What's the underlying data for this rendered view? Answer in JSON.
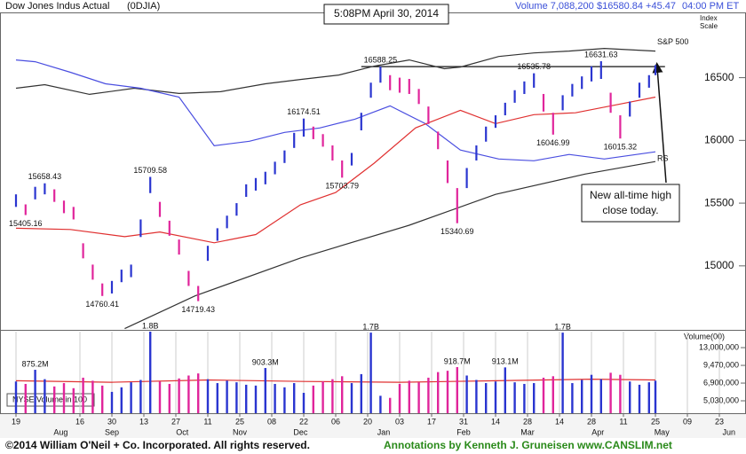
{
  "header": {
    "title": "Dow Jones Indus Actual",
    "symbol": "(0DJIA)",
    "timestamp": "5:08PM April 30, 2014",
    "volume_text": "Volume 7,088,200",
    "price_text": "$16580.84 +45.47",
    "time_text": "04:00 PM ET",
    "scale_label": [
      "Index",
      "Scale"
    ]
  },
  "chart_data": {
    "type": "ohlc",
    "x": [
      0,
      3,
      6,
      9,
      12,
      15,
      18,
      21,
      24,
      27,
      30,
      33,
      36,
      39,
      42,
      45,
      48,
      51,
      54,
      57,
      60,
      63,
      66,
      69,
      72,
      75,
      78,
      81,
      84,
      87,
      90,
      93,
      96,
      99,
      102,
      105,
      108,
      111,
      114,
      117,
      120,
      123,
      126,
      129,
      132,
      135,
      138,
      141,
      144,
      147,
      150,
      153,
      156,
      159,
      162,
      165,
      168,
      171,
      174,
      177,
      180,
      183,
      186,
      189,
      192,
      195,
      198,
      200
    ],
    "high": [
      15570,
      15490,
      15630,
      15658,
      15610,
      15520,
      15470,
      15180,
      15010,
      14860,
      14880,
      14970,
      15010,
      15370,
      15709,
      15510,
      15360,
      15210,
      14960,
      14840,
      15160,
      15300,
      15400,
      15500,
      15650,
      15700,
      15750,
      15830,
      15920,
      16060,
      16174,
      16110,
      16050,
      15960,
      15840,
      15900,
      16220,
      16460,
      16588,
      16520,
      16500,
      16490,
      16410,
      16270,
      16070,
      15840,
      15620,
      15780,
      15960,
      16110,
      16200,
      16300,
      16400,
      16470,
      16535,
      16370,
      16220,
      16360,
      16450,
      16510,
      16590,
      16631,
      16380,
      16200,
      16310,
      16460,
      16520,
      16600
    ],
    "low": [
      15470,
      15405,
      15530,
      15570,
      15510,
      15420,
      15370,
      15060,
      14890,
      14760,
      14780,
      14870,
      14910,
      15230,
      15580,
      15390,
      15240,
      15090,
      14840,
      14719,
      15040,
      15200,
      15300,
      15400,
      15550,
      15600,
      15650,
      15730,
      15820,
      15940,
      16030,
      16010,
      15950,
      15840,
      15703,
      15800,
      16080,
      16340,
      16460,
      16400,
      16380,
      16370,
      16290,
      16130,
      15930,
      15660,
      15340,
      15620,
      15840,
      15990,
      16100,
      16200,
      16300,
      16370,
      16420,
      16230,
      16046,
      16240,
      16350,
      16410,
      16470,
      16490,
      16220,
      16015,
      16190,
      16340,
      16420,
      16520
    ],
    "up_color": "#2a35d0",
    "down_color": "#e0259b",
    "xlim": [
      -5,
      225
    ],
    "ylim": [
      14490,
      17020
    ],
    "yticks": [
      15000,
      15500,
      16000,
      16500
    ],
    "grid": true,
    "xticks": [
      {
        "value": 0,
        "label": "19"
      },
      {
        "value": 20,
        "label": "16"
      },
      {
        "value": 30,
        "label": "30"
      },
      {
        "value": 40,
        "label": "13"
      },
      {
        "value": 50,
        "label": "27"
      },
      {
        "value": 60,
        "label": "11"
      },
      {
        "value": 70,
        "label": "25"
      },
      {
        "value": 80,
        "label": "08"
      },
      {
        "value": 90,
        "label": "22"
      },
      {
        "value": 100,
        "label": "06"
      },
      {
        "value": 110,
        "label": "20"
      },
      {
        "value": 120,
        "label": "03"
      },
      {
        "value": 130,
        "label": "17"
      },
      {
        "value": 140,
        "label": "31"
      },
      {
        "value": 150,
        "label": "14"
      },
      {
        "value": 160,
        "label": "28"
      },
      {
        "value": 170,
        "label": "14"
      },
      {
        "value": 180,
        "label": "28"
      },
      {
        "value": 190,
        "label": "11"
      },
      {
        "value": 200,
        "label": "25"
      },
      {
        "value": 210,
        "label": "09"
      },
      {
        "value": 220,
        "label": "23"
      }
    ],
    "months": [
      {
        "value": 14,
        "label": "Aug"
      },
      {
        "value": 30,
        "label": "Sep"
      },
      {
        "value": 52,
        "label": "Oct"
      },
      {
        "value": 70,
        "label": "Nov"
      },
      {
        "value": 89,
        "label": "Dec"
      },
      {
        "value": 115,
        "label": "Jan"
      },
      {
        "value": 140,
        "label": "Feb"
      },
      {
        "value": 160,
        "label": "Mar"
      },
      {
        "value": 182,
        "label": "Apr"
      },
      {
        "value": 202,
        "label": "May"
      },
      {
        "value": 223,
        "label": "Jun"
      }
    ],
    "series": [
      {
        "name": "S&P 500",
        "color": "#333333",
        "x": [
          0,
          9,
          23,
          37,
          51,
          64,
          78,
          89,
          101,
          112,
          123,
          134,
          139,
          151,
          162,
          173,
          184,
          200
        ],
        "values": [
          16416,
          16444,
          16367,
          16416,
          16374,
          16388,
          16451,
          16486,
          16521,
          16592,
          16641,
          16571,
          16585,
          16669,
          16697,
          16712,
          16733,
          16712
        ]
      },
      {
        "name": "RS",
        "color": "#4a4ee0",
        "x": [
          0,
          6,
          17,
          28,
          39,
          51,
          62,
          73,
          84,
          95,
          106,
          117,
          128,
          139,
          151,
          162,
          173,
          184,
          200
        ],
        "values": [
          16641,
          16627,
          16543,
          16451,
          16416,
          16345,
          15958,
          15993,
          16064,
          16099,
          16169,
          16275,
          16134,
          15923,
          15852,
          15838,
          15888,
          15852,
          15909
        ]
      },
      {
        "color": "#e03030",
        "x": [
          0,
          17,
          34,
          45,
          62,
          75,
          89,
          100,
          112,
          125,
          139,
          150,
          162,
          175,
          189,
          200
        ],
        "values": [
          15300,
          15290,
          15233,
          15270,
          15184,
          15250,
          15487,
          15585,
          15818,
          16100,
          16240,
          16134,
          16205,
          16220,
          16290,
          16345
        ]
      },
      {
        "color": "#333333",
        "x": [
          34,
          56,
          89,
          123,
          150,
          178,
          200
        ],
        "values": [
          14500,
          14761,
          15063,
          15324,
          15570,
          15732,
          15831
        ]
      }
    ],
    "annotations": [
      {
        "text": "15658.43",
        "x": 9,
        "y": 15658.43,
        "position": "above"
      },
      {
        "text": "15405.16",
        "x": 3,
        "y": 15405.16,
        "position": "below"
      },
      {
        "text": "14760.41",
        "x": 27,
        "y": 14760.41,
        "position": "below"
      },
      {
        "text": "15709.58",
        "x": 42,
        "y": 15709.58,
        "position": "above"
      },
      {
        "text": "14719.43",
        "x": 57,
        "y": 14719.43,
        "position": "below"
      },
      {
        "text": "16174.51",
        "x": 90,
        "y": 16174.51,
        "position": "above"
      },
      {
        "text": "15703.79",
        "x": 102,
        "y": 15703.79,
        "position": "below"
      },
      {
        "text": "16588.25",
        "x": 114,
        "y": 16588.25,
        "position": "above"
      },
      {
        "text": "15340.69",
        "x": 138,
        "y": 15340.69,
        "position": "below"
      },
      {
        "text": "16535.78",
        "x": 162,
        "y": 16535.78,
        "position": "above"
      },
      {
        "text": "16046.99",
        "x": 168,
        "y": 16046.99,
        "position": "below"
      },
      {
        "text": "16631.63",
        "x": 183,
        "y": 16631.63,
        "position": "above"
      },
      {
        "text": "16015.32",
        "x": 189,
        "y": 16015.32,
        "position": "below"
      }
    ],
    "reference_line": {
      "y": 16588.25,
      "x": [
        108,
        203
      ]
    },
    "callout": [
      "New all-time high",
      "close today."
    ],
    "volume": {
      "label": "Volume(00)",
      "legend": "NYSE Volume in 100",
      "log": true,
      "values": [
        7100000,
        6800000,
        8752000,
        7400000,
        6500000,
        6900000,
        6300000,
        7600000,
        7200000,
        6600000,
        5900000,
        6400000,
        7000000,
        7300000,
        18000000,
        7100000,
        6800000,
        7500000,
        7900000,
        8200000,
        7400000,
        6900000,
        7200000,
        7000000,
        6700000,
        6600000,
        9033000,
        6800000,
        6400000,
        6900000,
        5800000,
        6600000,
        7100000,
        7400000,
        7800000,
        6900000,
        8100000,
        17000000,
        5500000,
        5300000,
        6800000,
        7200000,
        7000000,
        7600000,
        8400000,
        8600000,
        9187000,
        7900000,
        7300000,
        6900000,
        7100000,
        9131000,
        7000000,
        6800000,
        6900000,
        7600000,
        7800000,
        17000000,
        6900000,
        7300000,
        8000000,
        7400000,
        8300000,
        8000000,
        7100000,
        6700000,
        7000000,
        7200000
      ],
      "ylim": [
        4030000,
        17300000
      ],
      "yticks": [
        {
          "value": 13000000,
          "label": "13,000,000"
        },
        {
          "value": 9470000,
          "label": "9,470,000"
        },
        {
          "value": 6900000,
          "label": "6,900,000"
        },
        {
          "value": 5030000,
          "label": "5,030,000"
        }
      ],
      "average": {
        "color": "#e03030",
        "x": [
          0,
          30,
          60,
          90,
          120,
          150,
          180,
          200
        ],
        "values": [
          7200000,
          7000000,
          7300000,
          7100000,
          7000000,
          7200000,
          7400000,
          7300000
        ]
      },
      "annotations": [
        {
          "text": "875.2M",
          "x": 6,
          "y": 8752000
        },
        {
          "text": "1.8B",
          "x": 42,
          "y": 18000000
        },
        {
          "text": "903.3M",
          "x": 78,
          "y": 9033000
        },
        {
          "text": "1.7B",
          "x": 111,
          "y": 17000000
        },
        {
          "text": "918.7M",
          "x": 138,
          "y": 9187000
        },
        {
          "text": "913.1M",
          "x": 153,
          "y": 9131000
        },
        {
          "text": "1.7B",
          "x": 171,
          "y": 17000000
        }
      ]
    }
  },
  "footer": {
    "copyright": "©2014 William O'Neil + Co. Incorporated. All rights reserved.",
    "credit": "Annotations by Kenneth J. Gruneisen www.CANSLIM.net"
  }
}
